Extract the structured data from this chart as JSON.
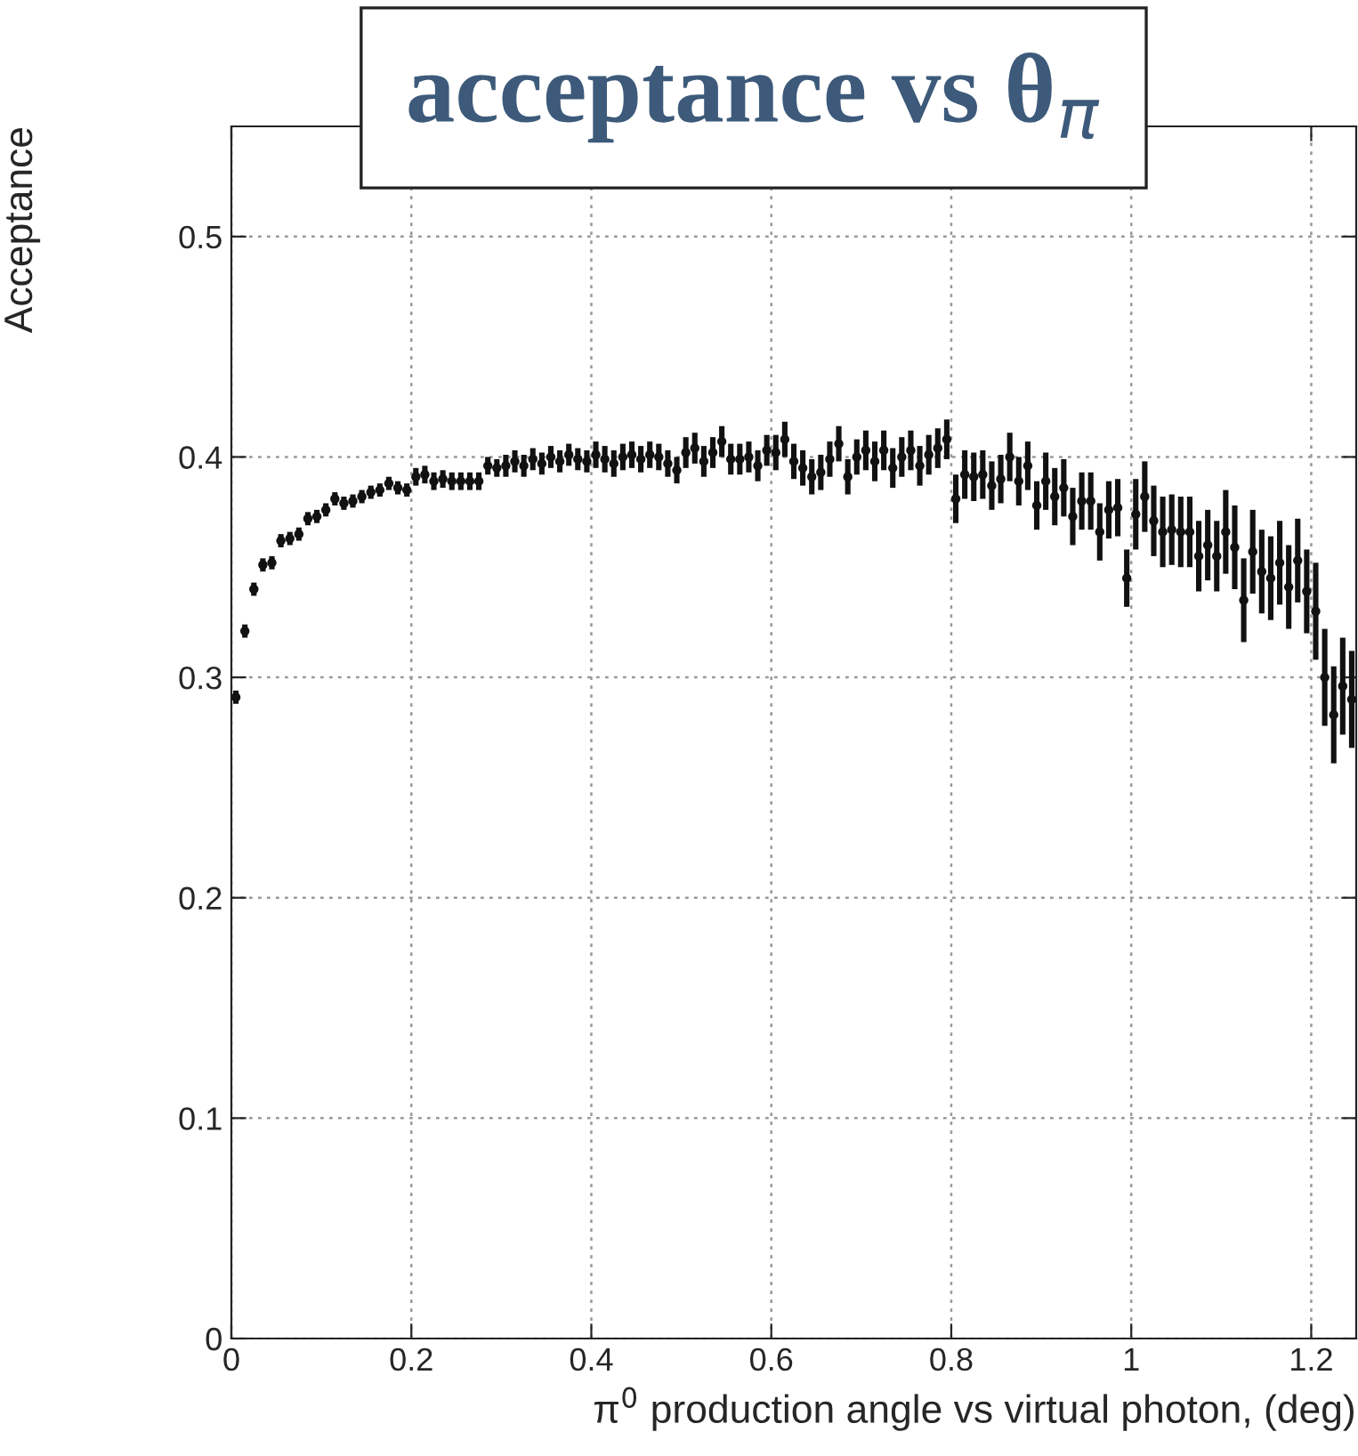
{
  "chart_data": {
    "type": "scatter",
    "title": "acceptance vs θ$_{π}$",
    "xlabel": "π$^{0}$ production angle vs virtual photon, (deg)",
    "ylabel": "Acceptance",
    "x": [
      0.005,
      0.015,
      0.025,
      0.035,
      0.045,
      0.055,
      0.065,
      0.075,
      0.085,
      0.095,
      0.105,
      0.115,
      0.125,
      0.135,
      0.145,
      0.155,
      0.165,
      0.175,
      0.185,
      0.195,
      0.205,
      0.215,
      0.225,
      0.235,
      0.245,
      0.255,
      0.265,
      0.275,
      0.285,
      0.295,
      0.305,
      0.315,
      0.325,
      0.335,
      0.345,
      0.355,
      0.365,
      0.375,
      0.385,
      0.395,
      0.405,
      0.415,
      0.425,
      0.435,
      0.445,
      0.455,
      0.465,
      0.475,
      0.485,
      0.495,
      0.505,
      0.515,
      0.525,
      0.535,
      0.545,
      0.555,
      0.565,
      0.575,
      0.585,
      0.595,
      0.605,
      0.615,
      0.625,
      0.635,
      0.645,
      0.655,
      0.665,
      0.675,
      0.685,
      0.695,
      0.705,
      0.715,
      0.725,
      0.735,
      0.745,
      0.755,
      0.765,
      0.775,
      0.785,
      0.795,
      0.805,
      0.815,
      0.825,
      0.835,
      0.845,
      0.855,
      0.865,
      0.875,
      0.885,
      0.895,
      0.905,
      0.915,
      0.925,
      0.935,
      0.945,
      0.955,
      0.965,
      0.975,
      0.985,
      0.995,
      1.005,
      1.015,
      1.025,
      1.035,
      1.045,
      1.055,
      1.065,
      1.075,
      1.085,
      1.095,
      1.105,
      1.115,
      1.125,
      1.135,
      1.145,
      1.155,
      1.165,
      1.175,
      1.185,
      1.195,
      1.205,
      1.215,
      1.225,
      1.235,
      1.245
    ],
    "values": [
      0.291,
      0.321,
      0.34,
      0.351,
      0.352,
      0.362,
      0.363,
      0.365,
      0.372,
      0.373,
      0.376,
      0.381,
      0.379,
      0.38,
      0.382,
      0.384,
      0.385,
      0.388,
      0.386,
      0.385,
      0.391,
      0.392,
      0.389,
      0.39,
      0.389,
      0.389,
      0.389,
      0.389,
      0.396,
      0.395,
      0.396,
      0.398,
      0.396,
      0.399,
      0.397,
      0.4,
      0.398,
      0.401,
      0.399,
      0.398,
      0.401,
      0.399,
      0.397,
      0.4,
      0.401,
      0.399,
      0.401,
      0.4,
      0.397,
      0.394,
      0.402,
      0.404,
      0.398,
      0.402,
      0.407,
      0.399,
      0.399,
      0.4,
      0.396,
      0.403,
      0.402,
      0.408,
      0.398,
      0.395,
      0.391,
      0.393,
      0.399,
      0.406,
      0.391,
      0.4,
      0.403,
      0.398,
      0.403,
      0.395,
      0.4,
      0.403,
      0.396,
      0.401,
      0.404,
      0.408,
      0.381,
      0.392,
      0.391,
      0.392,
      0.387,
      0.39,
      0.4,
      0.389,
      0.396,
      0.378,
      0.389,
      0.382,
      0.386,
      0.373,
      0.38,
      0.38,
      0.366,
      0.376,
      0.377,
      0.345,
      0.374,
      0.382,
      0.371,
      0.366,
      0.367,
      0.366,
      0.366,
      0.355,
      0.36,
      0.355,
      0.366,
      0.359,
      0.335,
      0.357,
      0.348,
      0.345,
      0.352,
      0.341,
      0.353,
      0.339,
      0.33,
      0.3,
      0.283,
      0.296,
      0.29
    ],
    "errors": [
      0.003,
      0.003,
      0.003,
      0.003,
      0.003,
      0.003,
      0.003,
      0.003,
      0.003,
      0.003,
      0.003,
      0.003,
      0.003,
      0.003,
      0.003,
      0.003,
      0.003,
      0.003,
      0.003,
      0.003,
      0.004,
      0.004,
      0.004,
      0.004,
      0.004,
      0.004,
      0.004,
      0.004,
      0.004,
      0.004,
      0.005,
      0.005,
      0.005,
      0.005,
      0.005,
      0.005,
      0.005,
      0.005,
      0.005,
      0.005,
      0.006,
      0.006,
      0.006,
      0.006,
      0.006,
      0.006,
      0.006,
      0.006,
      0.006,
      0.006,
      0.007,
      0.007,
      0.007,
      0.007,
      0.007,
      0.007,
      0.007,
      0.007,
      0.007,
      0.007,
      0.008,
      0.008,
      0.008,
      0.008,
      0.008,
      0.008,
      0.008,
      0.008,
      0.008,
      0.008,
      0.009,
      0.009,
      0.009,
      0.009,
      0.009,
      0.009,
      0.009,
      0.009,
      0.009,
      0.009,
      0.011,
      0.011,
      0.011,
      0.011,
      0.011,
      0.011,
      0.011,
      0.011,
      0.011,
      0.011,
      0.013,
      0.013,
      0.013,
      0.013,
      0.013,
      0.013,
      0.013,
      0.013,
      0.013,
      0.013,
      0.016,
      0.016,
      0.016,
      0.016,
      0.016,
      0.016,
      0.016,
      0.016,
      0.016,
      0.016,
      0.019,
      0.019,
      0.019,
      0.019,
      0.019,
      0.019,
      0.019,
      0.019,
      0.019,
      0.019,
      0.022,
      0.022,
      0.022,
      0.022,
      0.022
    ],
    "color": "#111111",
    "marker": "circle",
    "xlim": [
      0,
      1.25
    ],
    "ylim": [
      0,
      0.55
    ],
    "xticks": [
      0,
      0.2,
      0.4,
      0.6,
      0.8,
      1,
      1.2
    ],
    "yticks": [
      0,
      0.1,
      0.2,
      0.3,
      0.4,
      0.5
    ],
    "grid": true
  }
}
